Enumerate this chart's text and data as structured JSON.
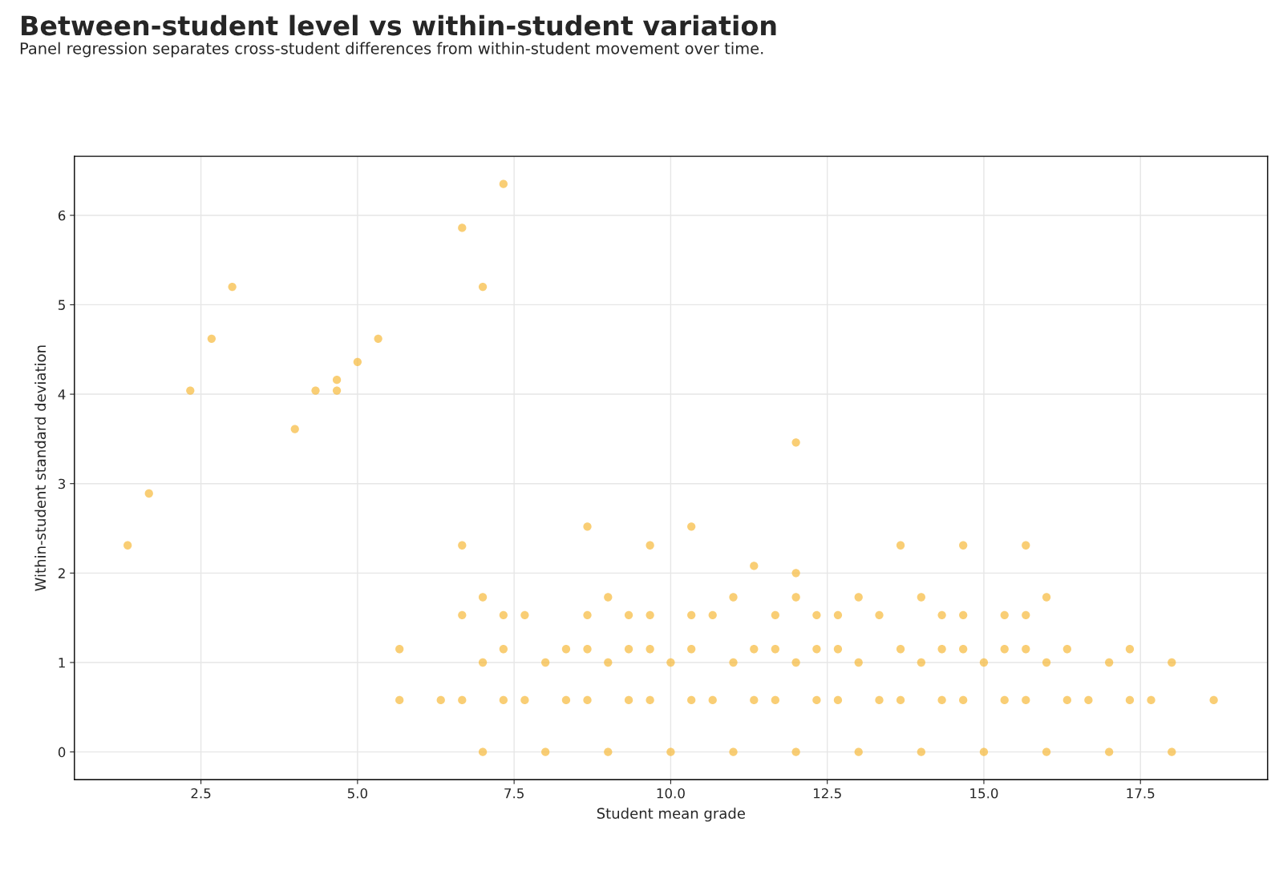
{
  "chart_data": {
    "type": "scatter",
    "title": "Between-student level vs within-student variation",
    "subtitle": "Panel regression separates cross-student differences from within-student movement over time.",
    "xlabel": "Student mean grade",
    "ylabel": "Within-student standard deviation",
    "xlim": [
      0.48,
      19.53
    ],
    "ylim": [
      -0.31,
      6.66
    ],
    "xticks": [
      {
        "value": 2.5,
        "label": "2.5"
      },
      {
        "value": 5,
        "label": "5.0"
      },
      {
        "value": 7.5,
        "label": "7.5"
      },
      {
        "value": 10,
        "label": "10.0"
      },
      {
        "value": 12.5,
        "label": "12.5"
      },
      {
        "value": 15,
        "label": "15.0"
      },
      {
        "value": 17.5,
        "label": "17.5"
      }
    ],
    "yticks": [
      0,
      1,
      2,
      3,
      4,
      5,
      6
    ],
    "grid": true,
    "marker": "circle",
    "series": [
      {
        "color": "#f6b93b",
        "x": [
          1.33,
          1.67,
          2.33,
          2.67,
          3,
          4,
          4.33,
          4.67,
          4.67,
          5,
          5.33,
          5.67,
          5.67,
          6.33,
          6.67,
          6.67,
          6.67,
          6.67,
          7,
          7,
          7,
          7,
          7.33,
          7.33,
          7.33,
          7.33,
          7.67,
          7.67,
          8,
          8,
          8.33,
          8.33,
          8.67,
          8.67,
          8.67,
          8.67,
          9,
          9,
          9,
          9.33,
          9.33,
          9.33,
          9.67,
          9.67,
          9.67,
          9.67,
          10,
          10,
          10.33,
          10.33,
          10.33,
          10.33,
          10.67,
          10.67,
          11,
          11,
          11,
          11.33,
          11.33,
          11.33,
          11.67,
          11.67,
          11.67,
          12,
          12,
          12,
          12,
          12,
          12.33,
          12.33,
          12.33,
          12.67,
          12.67,
          12.67,
          13,
          13,
          13,
          13.33,
          13.33,
          13.67,
          13.67,
          13.67,
          14,
          14,
          14,
          14.33,
          14.33,
          14.33,
          14.67,
          14.67,
          14.67,
          14.67,
          15,
          15,
          15.33,
          15.33,
          15.33,
          15.67,
          15.67,
          15.67,
          15.67,
          16,
          16,
          16,
          16.33,
          16.33,
          16.67,
          17,
          17,
          17.33,
          17.33,
          17.67,
          18,
          18,
          18.67
        ],
        "values": [
          2.31,
          2.89,
          4.04,
          4.62,
          5.2,
          3.61,
          4.04,
          4.16,
          4.04,
          4.36,
          4.62,
          1.15,
          0.58,
          0.58,
          5.86,
          2.31,
          1.53,
          0.58,
          5.2,
          1.73,
          1,
          0,
          6.35,
          1.53,
          1.15,
          0.58,
          1.53,
          0.58,
          1,
          0,
          1.15,
          0.58,
          2.52,
          1.53,
          1.15,
          0.58,
          1.73,
          1,
          0,
          1.53,
          1.15,
          0.58,
          2.31,
          1.53,
          1.15,
          0.58,
          1,
          0,
          2.52,
          1.53,
          1.15,
          0.58,
          1.53,
          0.58,
          1.73,
          1,
          0,
          2.08,
          1.15,
          0.58,
          1.53,
          1.15,
          0.58,
          3.46,
          2,
          1.73,
          1,
          0,
          1.53,
          1.15,
          0.58,
          1.53,
          1.15,
          0.58,
          1.73,
          1,
          0,
          1.53,
          0.58,
          2.31,
          1.15,
          0.58,
          1.73,
          1,
          0,
          1.53,
          1.15,
          0.58,
          2.31,
          1.53,
          1.15,
          0.58,
          1,
          0,
          1.53,
          1.15,
          0.58,
          2.31,
          1.53,
          1.15,
          0.58,
          1.73,
          1,
          0,
          1.15,
          0.58,
          0.58,
          1,
          0,
          1.15,
          0.58,
          0.58,
          1,
          0,
          0.58
        ]
      }
    ]
  }
}
